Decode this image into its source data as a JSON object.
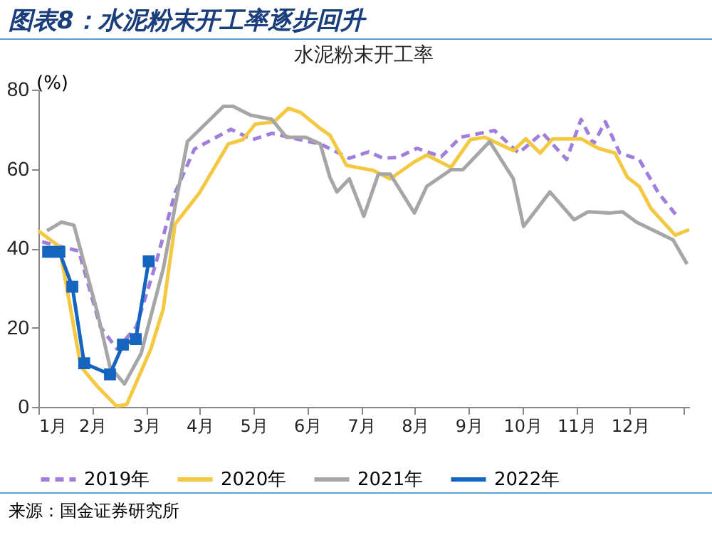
{
  "chart_data": {
    "type": "line",
    "title": "图表8：水泥粉末开工率逐步回升",
    "subtitle": "水泥粉末开工率",
    "ylabel": "(%)",
    "annotations": [
      "来源：国金证券研究所"
    ],
    "xlim": [
      1,
      13.1
    ],
    "xticks": [
      {
        "value": 1,
        "label": "1月"
      },
      {
        "value": 2,
        "label": "2月"
      },
      {
        "value": 3,
        "label": "3月"
      },
      {
        "value": 4,
        "label": "4月"
      },
      {
        "value": 5,
        "label": "5月"
      },
      {
        "value": 6,
        "label": "6月"
      },
      {
        "value": 7,
        "label": "7月"
      },
      {
        "value": 8,
        "label": "8月"
      },
      {
        "value": 9,
        "label": "9月"
      },
      {
        "value": 10,
        "label": "10月"
      },
      {
        "value": 11,
        "label": "11月"
      },
      {
        "value": 12,
        "label": "12月"
      },
      {
        "value": 13,
        "label": null
      }
    ],
    "ylim": [
      0,
      80
    ],
    "yticks": [
      0,
      20,
      40,
      60,
      80
    ],
    "grid": false,
    "legend": "bottom",
    "series": [
      {
        "name": "2019年",
        "color": "#a07fdc",
        "line_style": "dashed",
        "marker": "none",
        "x": [
          1.07,
          1.75,
          2.15,
          2.46,
          2.82,
          3.18,
          3.54,
          3.9,
          4.58,
          4.98,
          5.34,
          5.79,
          6.24,
          6.78,
          7.14,
          7.41,
          7.68,
          8.04,
          8.49,
          8.85,
          9.48,
          9.93,
          10.37,
          10.82,
          11.09,
          11.32,
          11.54,
          11.81,
          12.17,
          12.53,
          12.89
        ],
        "values": [
          41.6,
          39.3,
          20.2,
          14.6,
          20.2,
          36,
          54,
          65,
          70,
          67.4,
          69,
          67.6,
          66.3,
          62.7,
          64.3,
          62.7,
          62.9,
          65.2,
          63.1,
          68,
          69.7,
          64,
          69.1,
          62.4,
          72.5,
          66.3,
          71.9,
          64,
          62.4,
          53.9,
          47.8
        ]
      },
      {
        "name": "2020年",
        "color": "#f5c842",
        "line_style": "solid",
        "marker": "none",
        "x": [
          1.0,
          1.39,
          1.79,
          2.1,
          2.45,
          2.64,
          3.09,
          3.32,
          3.54,
          3.99,
          4.53,
          4.8,
          5.03,
          5.38,
          5.65,
          5.88,
          6.24,
          6.42,
          6.73,
          7.23,
          7.54,
          7.99,
          8.22,
          8.67,
          9.03,
          9.3,
          9.83,
          10.06,
          10.33,
          10.56,
          11.09,
          11.41,
          11.72,
          11.95,
          12.17,
          12.39,
          12.84,
          13.1
        ],
        "values": [
          44.4,
          40.4,
          10.1,
          5.1,
          0.2,
          0.6,
          14.6,
          24.7,
          46.1,
          53.9,
          66.3,
          67.4,
          71.3,
          71.9,
          75.3,
          74.2,
          70.2,
          68.5,
          60.9,
          59.6,
          57.5,
          61.8,
          63.5,
          60.4,
          67.4,
          68,
          64.6,
          67.6,
          64,
          67.6,
          67.6,
          65.2,
          64,
          57.9,
          55.6,
          50,
          43.3,
          44.7
        ]
      },
      {
        "name": "2021年",
        "color": "#a6a6a6",
        "line_style": "solid",
        "marker": "none",
        "x": [
          1.16,
          1.43,
          1.66,
          2.1,
          2.33,
          2.6,
          2.91,
          3.32,
          3.77,
          4.44,
          4.62,
          4.94,
          5.34,
          5.61,
          5.97,
          6.24,
          6.42,
          6.55,
          6.78,
          7.05,
          7.32,
          7.54,
          7.99,
          8.22,
          8.67,
          8.89,
          9.39,
          9.83,
          10.02,
          10.51,
          10.96,
          11.22,
          11.63,
          11.86,
          12.12,
          12.8,
          13.06
        ],
        "values": [
          44.4,
          46.6,
          45.8,
          23.6,
          10.1,
          5.8,
          13.5,
          34.8,
          66.9,
          75.8,
          75.8,
          73.6,
          72.5,
          68,
          68,
          66.3,
          57.9,
          54.2,
          57.5,
          48.1,
          58.7,
          58.7,
          48.9,
          55.6,
          59.8,
          59.8,
          66.9,
          57.5,
          45.5,
          54.2,
          47.2,
          49.2,
          48.9,
          49.2,
          46.6,
          42.1,
          36
        ]
      },
      {
        "name": "2022年",
        "color": "#1565c0",
        "line_style": "solid",
        "marker": "square",
        "x": [
          1.18,
          1.39,
          1.63,
          1.85,
          2.33,
          2.57,
          2.81,
          3.05
        ],
        "values": [
          39.1,
          39.1,
          30.3,
          11,
          8.2,
          15.7,
          17.1,
          36.7
        ]
      }
    ]
  }
}
